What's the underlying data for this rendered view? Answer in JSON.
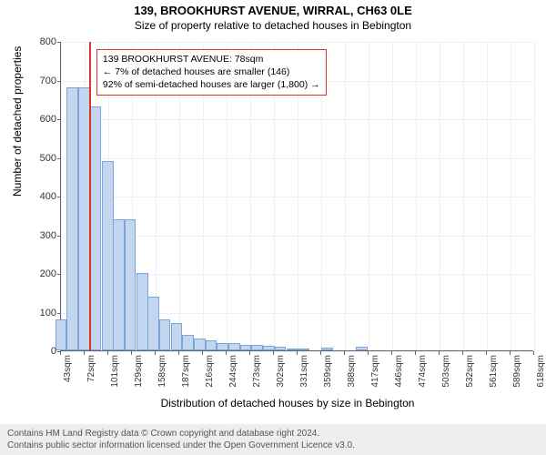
{
  "title": "139, BROOKHURST AVENUE, WIRRAL, CH63 0LE",
  "subtitle": "Size of property relative to detached houses in Bebington",
  "chart": {
    "type": "histogram",
    "ylabel": "Number of detached properties",
    "xlabel": "Distribution of detached houses by size in Bebington",
    "ylim": [
      0,
      800
    ],
    "ytick_step": 100,
    "background_color": "#ffffff",
    "grid_color": "#eef0f4",
    "bar_fill": "#c3d6f0",
    "bar_stroke": "#7ba4db",
    "refline_color": "#d43a2a",
    "refline_x_sqm": 78,
    "x_range_sqm": [
      43,
      632
    ],
    "x_tick_labels": [
      "43sqm",
      "72sqm",
      "101sqm",
      "129sqm",
      "158sqm",
      "187sqm",
      "216sqm",
      "244sqm",
      "273sqm",
      "302sqm",
      "331sqm",
      "359sqm",
      "388sqm",
      "417sqm",
      "446sqm",
      "474sqm",
      "503sqm",
      "532sqm",
      "561sqm",
      "589sqm",
      "618sqm"
    ],
    "bars": [
      {
        "x_sqm": 43,
        "value": 80
      },
      {
        "x_sqm": 57,
        "value": 680
      },
      {
        "x_sqm": 72,
        "value": 680
      },
      {
        "x_sqm": 86,
        "value": 630
      },
      {
        "x_sqm": 101,
        "value": 490
      },
      {
        "x_sqm": 115,
        "value": 340
      },
      {
        "x_sqm": 129,
        "value": 340
      },
      {
        "x_sqm": 144,
        "value": 200
      },
      {
        "x_sqm": 158,
        "value": 140
      },
      {
        "x_sqm": 172,
        "value": 80
      },
      {
        "x_sqm": 187,
        "value": 70
      },
      {
        "x_sqm": 201,
        "value": 40
      },
      {
        "x_sqm": 216,
        "value": 30
      },
      {
        "x_sqm": 230,
        "value": 25
      },
      {
        "x_sqm": 244,
        "value": 20
      },
      {
        "x_sqm": 259,
        "value": 18
      },
      {
        "x_sqm": 273,
        "value": 15
      },
      {
        "x_sqm": 287,
        "value": 14
      },
      {
        "x_sqm": 302,
        "value": 12
      },
      {
        "x_sqm": 316,
        "value": 10
      },
      {
        "x_sqm": 331,
        "value": 5
      },
      {
        "x_sqm": 345,
        "value": 3
      },
      {
        "x_sqm": 359,
        "value": 0
      },
      {
        "x_sqm": 374,
        "value": 8
      },
      {
        "x_sqm": 388,
        "value": 0
      },
      {
        "x_sqm": 403,
        "value": 0
      },
      {
        "x_sqm": 417,
        "value": 10
      }
    ],
    "bar_width_sqm": 14.4
  },
  "annotation": {
    "line1": "139 BROOKHURST AVENUE: 78sqm",
    "line2": "← 7% of detached houses are smaller (146)",
    "line3": "92% of semi-detached houses are larger (1,800) →"
  },
  "footer": {
    "line1": "Contains HM Land Registry data © Crown copyright and database right 2024.",
    "line2": "Contains public sector information licensed under the Open Government Licence v3.0."
  }
}
